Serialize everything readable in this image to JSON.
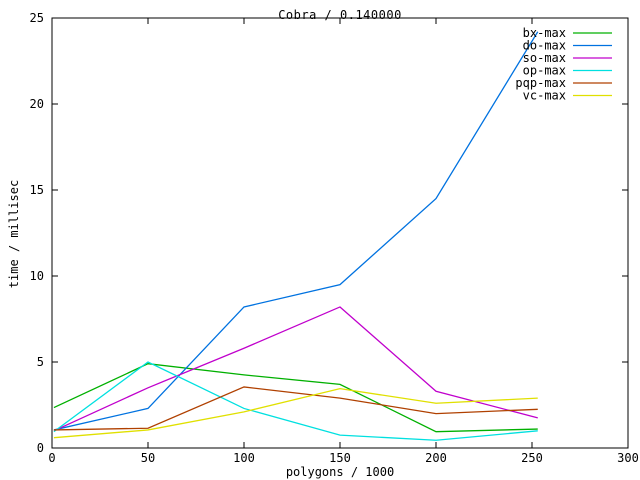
{
  "window": {
    "background_color": "#ffffff",
    "frame_color": "#000000",
    "text_color": "#000000"
  },
  "chart_data": {
    "type": "line",
    "title": "Cobra / 0.140000",
    "xlabel": "polygons / 1000",
    "ylabel": "time / millisec",
    "xlim": [
      0,
      300
    ],
    "ylim": [
      0,
      25
    ],
    "xticks": [
      0,
      50,
      100,
      150,
      200,
      250,
      300
    ],
    "yticks": [
      0,
      5,
      10,
      15,
      20,
      25
    ],
    "grid": false,
    "legend_position": "top-right-inside",
    "x": [
      1,
      50,
      100,
      150,
      200,
      253
    ],
    "series": [
      {
        "name": "bx-max",
        "color": "#00b000",
        "values": [
          2.35,
          4.9,
          4.25,
          3.7,
          0.95,
          1.1
        ]
      },
      {
        "name": "do-max",
        "color": "#0072e0",
        "values": [
          1.05,
          2.3,
          8.2,
          9.5,
          14.5,
          24.2
        ]
      },
      {
        "name": "so-max",
        "color": "#c000cc",
        "values": [
          1.0,
          3.5,
          5.8,
          8.2,
          3.3,
          1.75
        ]
      },
      {
        "name": "op-max",
        "color": "#00e0e0",
        "values": [
          0.95,
          5.0,
          2.3,
          0.75,
          0.45,
          1.0
        ]
      },
      {
        "name": "pqp-max",
        "color": "#b04000",
        "values": [
          1.05,
          1.15,
          3.55,
          2.9,
          2.0,
          2.25
        ]
      },
      {
        "name": "vc-max",
        "color": "#e0e000",
        "values": [
          0.6,
          1.05,
          2.1,
          3.45,
          2.6,
          2.9
        ]
      }
    ]
  }
}
